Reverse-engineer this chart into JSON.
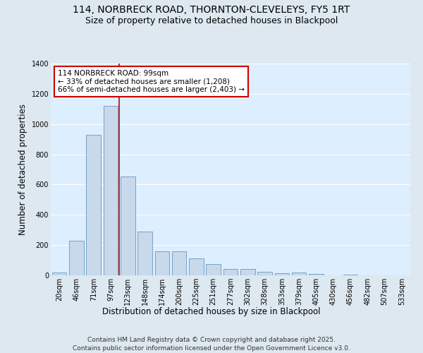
{
  "title_line1": "114, NORBRECK ROAD, THORNTON-CLEVELEYS, FY5 1RT",
  "title_line2": "Size of property relative to detached houses in Blackpool",
  "xlabel": "Distribution of detached houses by size in Blackpool",
  "ylabel": "Number of detached properties",
  "categories": [
    "20sqm",
    "46sqm",
    "71sqm",
    "97sqm",
    "123sqm",
    "148sqm",
    "174sqm",
    "200sqm",
    "225sqm",
    "251sqm",
    "277sqm",
    "302sqm",
    "328sqm",
    "353sqm",
    "379sqm",
    "405sqm",
    "430sqm",
    "456sqm",
    "482sqm",
    "507sqm",
    "533sqm"
  ],
  "values": [
    20,
    230,
    930,
    1120,
    655,
    290,
    160,
    160,
    110,
    75,
    40,
    40,
    25,
    15,
    20,
    10,
    0,
    5,
    0,
    0,
    0
  ],
  "bar_color": "#c8d9eb",
  "bar_edge_color": "#6699bb",
  "vline_x_index": 3,
  "vline_color": "#cc0000",
  "annotation_text": "114 NORBRECK ROAD: 99sqm\n← 33% of detached houses are smaller (1,208)\n66% of semi-detached houses are larger (2,403) →",
  "annotation_box_color": "#ffffff",
  "annotation_box_edge": "#cc0000",
  "ylim": [
    0,
    1400
  ],
  "yticks": [
    0,
    200,
    400,
    600,
    800,
    1000,
    1200,
    1400
  ],
  "fig_bg_color": "#dde8f0",
  "plot_bg_color": "#ddeeff",
  "grid_color": "#ffffff",
  "footer_line1": "Contains HM Land Registry data © Crown copyright and database right 2025.",
  "footer_line2": "Contains public sector information licensed under the Open Government Licence v3.0.",
  "title_fontsize": 10,
  "subtitle_fontsize": 9,
  "axis_label_fontsize": 8.5,
  "tick_fontsize": 7,
  "annotation_fontsize": 7.5,
  "footer_fontsize": 6.5
}
